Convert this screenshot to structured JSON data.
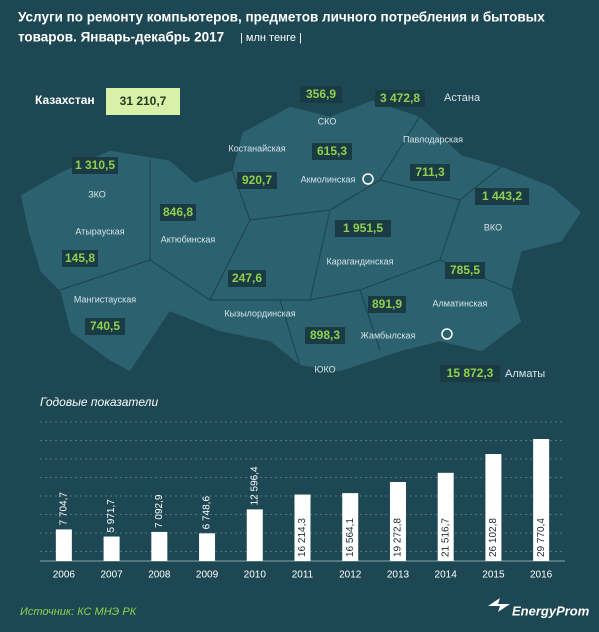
{
  "header": {
    "title_lines": [
      "Услуги по ремонту компьютеров, предметов личного потребления и бытовых",
      "товаров. Январь-декабрь 2017"
    ],
    "unit": "| млн тенге |"
  },
  "map": {
    "country": {
      "name": "Казахстан",
      "value": "31 210,7"
    },
    "regions": [
      {
        "name": "СКО",
        "value": "356,9"
      },
      {
        "name": "Астана",
        "value": "3 472,8"
      },
      {
        "name": "Павлодарская",
        "value": "711,3"
      },
      {
        "name": "Костанайская",
        "value": "920,7"
      },
      {
        "name": "Акмолинская",
        "value": "615,3"
      },
      {
        "name": "ЗКО",
        "value": "1 310,5"
      },
      {
        "name": "ВКО",
        "value": "1 443,2"
      },
      {
        "name": "Актюбинская",
        "value": "846,8"
      },
      {
        "name": "Атырауская",
        "value": "145,8"
      },
      {
        "name": "Карагандинская",
        "value": "1 951,5"
      },
      {
        "name": "Кызылординская",
        "value": "247,6"
      },
      {
        "name": "Мангистауская",
        "value": "740,5"
      },
      {
        "name": "Алматинская",
        "value": "785,5"
      },
      {
        "name": "Жамбылская",
        "value": "891,9"
      },
      {
        "name": "ЮКО",
        "value": "898,3"
      },
      {
        "name": "Алматы",
        "value": "15 872,3"
      }
    ]
  },
  "chart_data": {
    "type": "bar",
    "title": "Годовые показатели",
    "color": "#ffffff",
    "categories": [
      "2006",
      "2007",
      "2008",
      "2009",
      "2010",
      "2011",
      "2012",
      "2013",
      "2014",
      "2015",
      "2016"
    ],
    "values": [
      7704.7,
      5971.7,
      7092.9,
      6748.6,
      12596.4,
      16214.3,
      16564.1,
      19272.8,
      21516.7,
      26102.8,
      29770.4
    ],
    "value_labels": [
      "7 704,7",
      "5 971,7",
      "7 092,9",
      "6 748,6",
      "12 596,4",
      "16 214,3",
      "16 564,1",
      "19 272,8",
      "21 516,7",
      "26 102,8",
      "29 770,4"
    ]
  },
  "source": "Источник: КС МНЭ РК",
  "logo": "EnergyProm"
}
